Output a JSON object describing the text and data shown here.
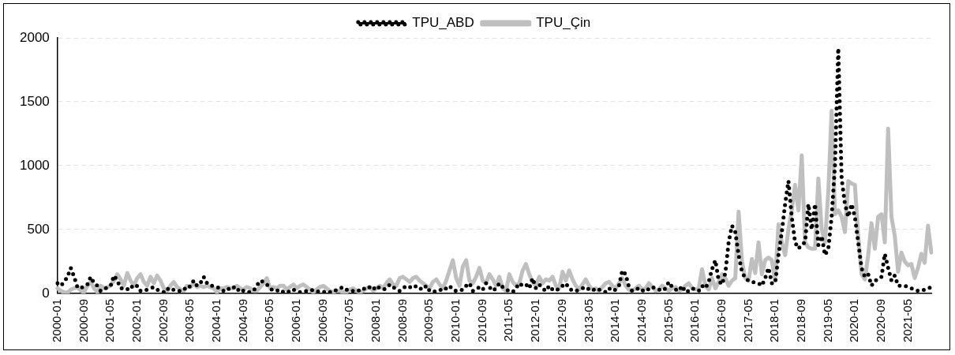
{
  "chart_data": {
    "type": "line",
    "categories": [
      "2000-01",
      null,
      null,
      null,
      null,
      null,
      null,
      null,
      "2000-09",
      null,
      null,
      null,
      null,
      null,
      null,
      null,
      "2001-05",
      null,
      null,
      null,
      null,
      null,
      null,
      null,
      "2002-01",
      null,
      null,
      null,
      null,
      null,
      null,
      null,
      "2002-09",
      null,
      null,
      null,
      null,
      null,
      null,
      null,
      "2003-05",
      null,
      null,
      null,
      null,
      null,
      null,
      null,
      "2004-01",
      null,
      null,
      null,
      null,
      null,
      null,
      null,
      "2004-09",
      null,
      null,
      null,
      null,
      null,
      null,
      null,
      "2005-05",
      null,
      null,
      null,
      null,
      null,
      null,
      null,
      "2006-01",
      null,
      null,
      null,
      null,
      null,
      null,
      null,
      "2006-09",
      null,
      null,
      null,
      null,
      null,
      null,
      null,
      "2007-05",
      null,
      null,
      null,
      null,
      null,
      null,
      null,
      "2008-01",
      null,
      null,
      null,
      null,
      null,
      null,
      null,
      "2008-09",
      null,
      null,
      null,
      null,
      null,
      null,
      null,
      "2009-05",
      null,
      null,
      null,
      null,
      null,
      null,
      null,
      "2010-01",
      null,
      null,
      null,
      null,
      null,
      null,
      null,
      "2010-09",
      null,
      null,
      null,
      null,
      null,
      null,
      null,
      "2011-05",
      null,
      null,
      null,
      null,
      null,
      null,
      null,
      "2012-01",
      null,
      null,
      null,
      null,
      null,
      null,
      null,
      "2012-09",
      null,
      null,
      null,
      null,
      null,
      null,
      null,
      "2013-05",
      null,
      null,
      null,
      null,
      null,
      null,
      null,
      "2014-01",
      null,
      null,
      null,
      null,
      null,
      null,
      null,
      "2014-09",
      null,
      null,
      null,
      null,
      null,
      null,
      null,
      "2015-05",
      null,
      null,
      null,
      null,
      null,
      null,
      null,
      "2016-01",
      null,
      null,
      null,
      null,
      null,
      null,
      null,
      "2016-09",
      null,
      null,
      null,
      null,
      null,
      null,
      null,
      "2017-05",
      null,
      null,
      null,
      null,
      null,
      null,
      null,
      "2018-01",
      null,
      null,
      null,
      null,
      null,
      null,
      null,
      "2018-09",
      null,
      null,
      null,
      null,
      null,
      null,
      null,
      "2019-05",
      null,
      null,
      null,
      null,
      null,
      null,
      null,
      "2020-01",
      null,
      null,
      null,
      null,
      null,
      null,
      null,
      "2020-09",
      null,
      null,
      null,
      null,
      null,
      null,
      null,
      "2021-05",
      null,
      null,
      null,
      null,
      null,
      null,
      null
    ],
    "series": [
      {
        "name": "TPU_ABD",
        "color": "#000000",
        "line_style": "dotted",
        "values": [
          80,
          60,
          90,
          130,
          200,
          130,
          50,
          40,
          60,
          70,
          130,
          80,
          60,
          20,
          30,
          50,
          60,
          140,
          100,
          40,
          40,
          30,
          60,
          40,
          60,
          20,
          20,
          30,
          40,
          50,
          30,
          20,
          10,
          40,
          20,
          30,
          20,
          20,
          40,
          30,
          60,
          100,
          60,
          80,
          130,
          80,
          60,
          60,
          50,
          40,
          20,
          40,
          30,
          50,
          20,
          40,
          20,
          10,
          10,
          20,
          60,
          100,
          90,
          70,
          40,
          20,
          20,
          30,
          10,
          20,
          10,
          30,
          20,
          10,
          10,
          20,
          20,
          30,
          20,
          10,
          10,
          20,
          10,
          10,
          30,
          40,
          50,
          30,
          20,
          20,
          30,
          20,
          40,
          30,
          50,
          30,
          60,
          40,
          30,
          40,
          70,
          50,
          30,
          20,
          40,
          60,
          50,
          40,
          60,
          40,
          30,
          60,
          20,
          10,
          20,
          30,
          20,
          40,
          60,
          30,
          20,
          20,
          30,
          60,
          80,
          20,
          30,
          50,
          30,
          80,
          50,
          20,
          40,
          80,
          50,
          30,
          20,
          10,
          40,
          80,
          60,
          70,
          40,
          120,
          40,
          70,
          40,
          20,
          60,
          30,
          20,
          40,
          60,
          80,
          40,
          20,
          20,
          30,
          40,
          50,
          30,
          20,
          40,
          30,
          20,
          10,
          40,
          20,
          30,
          60,
          180,
          150,
          50,
          20,
          30,
          40,
          20,
          40,
          30,
          50,
          40,
          30,
          20,
          40,
          90,
          50,
          30,
          20,
          60,
          10,
          20,
          40,
          30,
          20,
          60,
          40,
          90,
          190,
          260,
          100,
          70,
          160,
          400,
          530,
          480,
          300,
          170,
          120,
          100,
          90,
          85,
          80,
          60,
          120,
          200,
          80,
          80,
          300,
          480,
          700,
          880,
          600,
          400,
          350,
          380,
          400,
          700,
          500,
          700,
          380,
          450,
          300,
          350,
          600,
          1000,
          1920,
          900,
          700,
          600,
          700,
          600,
          400,
          200,
          130,
          150,
          60,
          100,
          110,
          130,
          310,
          200,
          100,
          140,
          60,
          60,
          60,
          50,
          40,
          30,
          20,
          20,
          30,
          40,
          50
        ]
      },
      {
        "name": "TPU_Çin",
        "color": "#bfbfbf",
        "line_style": "solid",
        "values": [
          40,
          20,
          10,
          5,
          30,
          40,
          50,
          20,
          10,
          60,
          90,
          40,
          10,
          60,
          40,
          50,
          60,
          100,
          150,
          110,
          60,
          160,
          100,
          60,
          120,
          150,
          90,
          60,
          130,
          80,
          140,
          100,
          40,
          20,
          60,
          90,
          50,
          30,
          20,
          60,
          50,
          80,
          50,
          60,
          50,
          60,
          50,
          40,
          10,
          40,
          40,
          50,
          40,
          40,
          60,
          40,
          30,
          50,
          40,
          20,
          20,
          50,
          80,
          120,
          40,
          50,
          40,
          60,
          60,
          30,
          50,
          70,
          40,
          60,
          70,
          50,
          30,
          10,
          30,
          50,
          60,
          40,
          20,
          10,
          20,
          20,
          10,
          10,
          30,
          40,
          20,
          10,
          20,
          40,
          50,
          20,
          40,
          60,
          40,
          80,
          110,
          70,
          60,
          120,
          130,
          110,
          90,
          120,
          130,
          100,
          80,
          60,
          40,
          90,
          110,
          70,
          40,
          100,
          180,
          260,
          120,
          60,
          210,
          260,
          100,
          80,
          130,
          200,
          100,
          80,
          150,
          110,
          60,
          130,
          40,
          20,
          150,
          90,
          60,
          80,
          180,
          230,
          150,
          90,
          60,
          130,
          80,
          110,
          100,
          130,
          60,
          40,
          170,
          100,
          180,
          110,
          60,
          30,
          70,
          110,
          60,
          30,
          40,
          20,
          50,
          80,
          90,
          60,
          40,
          80,
          120,
          60,
          30,
          20,
          40,
          60,
          30,
          40,
          80,
          50,
          20,
          30,
          60,
          40,
          20,
          40,
          50,
          20,
          30,
          60,
          80,
          40,
          30,
          40,
          190,
          60,
          30,
          120,
          40,
          90,
          150,
          120,
          60,
          100,
          120,
          640,
          250,
          120,
          100,
          270,
          160,
          400,
          150,
          260,
          280,
          260,
          100,
          540,
          400,
          300,
          500,
          650,
          850,
          650,
          1080,
          400,
          360,
          350,
          350,
          900,
          500,
          400,
          800,
          1430,
          620,
          650,
          600,
          480,
          880,
          860,
          850,
          450,
          150,
          110,
          300,
          550,
          350,
          600,
          620,
          400,
          1290,
          600,
          450,
          170,
          320,
          250,
          220,
          230,
          120,
          200,
          310,
          240,
          530,
          320
        ]
      }
    ],
    "ylim": [
      0,
      2000
    ],
    "yticks": [
      0,
      500,
      1000,
      1500,
      2000
    ],
    "grid": "y",
    "legend": "top",
    "marker": "none"
  }
}
